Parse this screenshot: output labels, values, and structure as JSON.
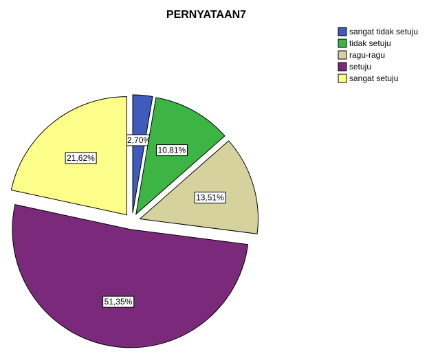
{
  "chart_data": {
    "type": "pie",
    "title": "PERNYATAAN7",
    "categories": [
      "sangat tidak setuju",
      "tidak setuju",
      "ragu-ragu",
      "setuju",
      "sangat setuju"
    ],
    "values": [
      2.7,
      10.81,
      13.51,
      51.35,
      21.62
    ],
    "value_labels": [
      "2,70%",
      "10,81%",
      "13,51%",
      "51,35%",
      "21,62%"
    ],
    "colors": [
      "#3e5bbd",
      "#3cb544",
      "#d6d29e",
      "#7b2a7b",
      "#fdfd8a"
    ],
    "legend": "top-right",
    "exploded": true
  }
}
